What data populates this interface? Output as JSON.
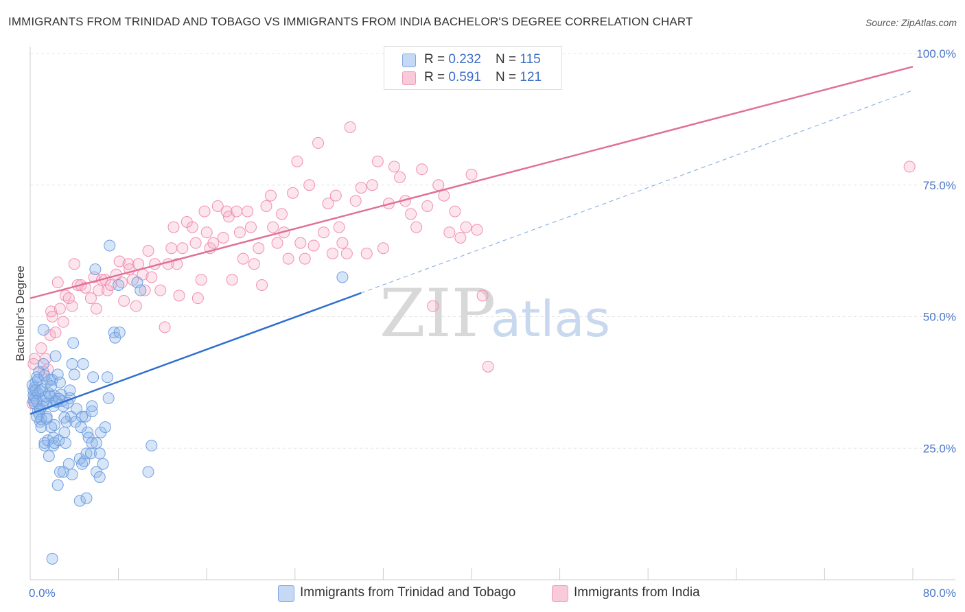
{
  "header": {
    "title": "IMMIGRANTS FROM TRINIDAD AND TOBAGO VS IMMIGRANTS FROM INDIA BACHELOR'S DEGREE CORRELATION CHART",
    "source": "Source: ZipAtlas.com"
  },
  "watermark": {
    "zip": "ZIP",
    "atlas": "atlas"
  },
  "legend": {
    "rows": [
      {
        "r_label": "R = ",
        "r_value": "0.232",
        "n_label": "N = ",
        "n_value": "115",
        "color": "#a9c6ef"
      },
      {
        "r_label": "R = ",
        "r_value": "0.591",
        "n_label": "N = ",
        "n_value": "121",
        "color": "#f4b8cb"
      }
    ]
  },
  "bottom_legend": {
    "items": [
      {
        "label": "Immigrants from Trinidad and Tobago",
        "color": "#a9c6ef"
      },
      {
        "label": "Immigrants from India",
        "color": "#f4b8cb"
      }
    ]
  },
  "chart_data": {
    "type": "scatter",
    "title": "IMMIGRANTS FROM TRINIDAD AND TOBAGO VS IMMIGRANTS FROM INDIA BACHELOR'S DEGREE CORRELATION CHART",
    "xlabel": "",
    "ylabel": "Bachelor's Degree",
    "xlim": [
      0,
      80
    ],
    "ylim": [
      0,
      100
    ],
    "x_tick_labels": [
      "0.0%",
      "80.0%"
    ],
    "y_tick_labels": [
      "25.0%",
      "50.0%",
      "75.0%",
      "100.0%"
    ],
    "y_ticks": [
      25,
      50,
      75,
      100
    ],
    "grid": true,
    "series": [
      {
        "name": "Immigrants from Trinidad and Tobago",
        "color": "#6f9fe0",
        "line_color": "#2f6fcf",
        "r": "0.232",
        "n": "115",
        "trend_solid": [
          [
            0,
            31.5
          ],
          [
            30,
            54.5
          ]
        ],
        "trend_dashed": [
          [
            30,
            54.5
          ],
          [
            80,
            93
          ]
        ],
        "points": [
          [
            0.3,
            35
          ],
          [
            0.3,
            36
          ],
          [
            0.3,
            34
          ],
          [
            0.4,
            36.5
          ],
          [
            0.4,
            34.5
          ],
          [
            0.5,
            37.5
          ],
          [
            0.6,
            38.5
          ],
          [
            0.4,
            33.5
          ],
          [
            0.6,
            34
          ],
          [
            0.7,
            32
          ],
          [
            0.7,
            35.5
          ],
          [
            0.8,
            39.5
          ],
          [
            0.8,
            31.5
          ],
          [
            0.9,
            30
          ],
          [
            1.0,
            30.5
          ],
          [
            1.0,
            29
          ],
          [
            1.1,
            33
          ],
          [
            1.2,
            34
          ],
          [
            1.2,
            41
          ],
          [
            1.2,
            47.5
          ],
          [
            1.3,
            26
          ],
          [
            1.3,
            25.5
          ],
          [
            1.5,
            31
          ],
          [
            1.5,
            37.5
          ],
          [
            1.5,
            33.5
          ],
          [
            1.6,
            26.5
          ],
          [
            1.7,
            23.5
          ],
          [
            1.8,
            35
          ],
          [
            1.8,
            38
          ],
          [
            1.9,
            29
          ],
          [
            2.0,
            38
          ],
          [
            2.1,
            27
          ],
          [
            2.1,
            33
          ],
          [
            2.1,
            25.5
          ],
          [
            2.2,
            35
          ],
          [
            2.2,
            26
          ],
          [
            2.3,
            34
          ],
          [
            2.3,
            42.5
          ],
          [
            2.5,
            18
          ],
          [
            2.5,
            39
          ],
          [
            2.6,
            26.5
          ],
          [
            2.7,
            20.5
          ],
          [
            2.7,
            37.5
          ],
          [
            2.9,
            34
          ],
          [
            3.0,
            33
          ],
          [
            3.0,
            20.5
          ],
          [
            3.1,
            28
          ],
          [
            3.2,
            26
          ],
          [
            3.3,
            30
          ],
          [
            3.5,
            22
          ],
          [
            3.6,
            36
          ],
          [
            3.6,
            34.5
          ],
          [
            3.7,
            31
          ],
          [
            3.8,
            20
          ],
          [
            3.8,
            41
          ],
          [
            3.9,
            45
          ],
          [
            4.0,
            39
          ],
          [
            4.1,
            30
          ],
          [
            4.2,
            32.5
          ],
          [
            4.5,
            15
          ],
          [
            4.5,
            23
          ],
          [
            4.6,
            29
          ],
          [
            4.7,
            31
          ],
          [
            4.7,
            22
          ],
          [
            4.8,
            41
          ],
          [
            4.9,
            22.5
          ],
          [
            5.0,
            31
          ],
          [
            5.1,
            15.5
          ],
          [
            5.1,
            24
          ],
          [
            5.2,
            28
          ],
          [
            5.3,
            27
          ],
          [
            5.5,
            24
          ],
          [
            5.6,
            32
          ],
          [
            5.6,
            26
          ],
          [
            5.6,
            33
          ],
          [
            5.7,
            38.5
          ],
          [
            5.9,
            59
          ],
          [
            6.0,
            26
          ],
          [
            6.0,
            20.5
          ],
          [
            6.3,
            19.5
          ],
          [
            6.3,
            24
          ],
          [
            6.4,
            28
          ],
          [
            6.6,
            22
          ],
          [
            6.8,
            29
          ],
          [
            7.0,
            38.5
          ],
          [
            7.1,
            34.5
          ],
          [
            7.2,
            63.5
          ],
          [
            7.6,
            47
          ],
          [
            7.7,
            46
          ],
          [
            8.0,
            56
          ],
          [
            8.1,
            47
          ],
          [
            9.7,
            56.5
          ],
          [
            10.0,
            55
          ],
          [
            10.7,
            20.5
          ],
          [
            11.0,
            25.5
          ],
          [
            28.3,
            57.5
          ],
          [
            2.0,
            4
          ],
          [
            0.2,
            37
          ],
          [
            0.5,
            36
          ],
          [
            0.9,
            35.8
          ],
          [
            1.1,
            36.2
          ],
          [
            1.4,
            34.8
          ],
          [
            1.7,
            35.4
          ],
          [
            2.4,
            33.8
          ],
          [
            2.8,
            35.2
          ],
          [
            3.4,
            33.6
          ],
          [
            0.7,
            38
          ],
          [
            1.3,
            38.8
          ],
          [
            1.9,
            36.8
          ],
          [
            2.6,
            34.4
          ],
          [
            0.9,
            32.4
          ],
          [
            1.5,
            30.6
          ],
          [
            2.2,
            29.4
          ],
          [
            3.1,
            30.8
          ],
          [
            0.6,
            31
          ]
        ]
      },
      {
        "name": "Immigrants from India",
        "color": "#f08fae",
        "line_color": "#e0709a",
        "r": "0.591",
        "n": "121",
        "trend_solid": [
          [
            0,
            53.5
          ],
          [
            80,
            97.5
          ]
        ],
        "points": [
          [
            0.2,
            33.5
          ],
          [
            0.3,
            41
          ],
          [
            1.2,
            39.5
          ],
          [
            1.4,
            42
          ],
          [
            1.8,
            46.5
          ],
          [
            1.9,
            51
          ],
          [
            2.0,
            50
          ],
          [
            2.3,
            47
          ],
          [
            2.5,
            56.5
          ],
          [
            2.7,
            51.5
          ],
          [
            3.0,
            49
          ],
          [
            3.2,
            54
          ],
          [
            3.5,
            53.5
          ],
          [
            3.8,
            52
          ],
          [
            4.0,
            60
          ],
          [
            4.3,
            56
          ],
          [
            4.6,
            56
          ],
          [
            5.0,
            55.5
          ],
          [
            5.5,
            53.5
          ],
          [
            5.8,
            57.5
          ],
          [
            6.0,
            51.5
          ],
          [
            6.2,
            55
          ],
          [
            6.5,
            57
          ],
          [
            6.8,
            57
          ],
          [
            7.0,
            55
          ],
          [
            7.3,
            56
          ],
          [
            7.8,
            58
          ],
          [
            8.1,
            60.5
          ],
          [
            8.3,
            56.5
          ],
          [
            8.5,
            53
          ],
          [
            8.9,
            60
          ],
          [
            9.0,
            59
          ],
          [
            9.3,
            57
          ],
          [
            9.6,
            52
          ],
          [
            9.8,
            60
          ],
          [
            10.2,
            58
          ],
          [
            10.4,
            55
          ],
          [
            10.7,
            62.5
          ],
          [
            11.0,
            57.5
          ],
          [
            11.3,
            60
          ],
          [
            11.8,
            55
          ],
          [
            12.2,
            48
          ],
          [
            12.5,
            60
          ],
          [
            12.8,
            63
          ],
          [
            13.0,
            67
          ],
          [
            13.3,
            60
          ],
          [
            13.5,
            54
          ],
          [
            13.8,
            63
          ],
          [
            14.2,
            68
          ],
          [
            14.7,
            67
          ],
          [
            15.0,
            64
          ],
          [
            15.2,
            53.5
          ],
          [
            15.5,
            57
          ],
          [
            15.8,
            70
          ],
          [
            16.0,
            66
          ],
          [
            16.3,
            63
          ],
          [
            16.6,
            64
          ],
          [
            17.0,
            71
          ],
          [
            17.5,
            65
          ],
          [
            17.8,
            70
          ],
          [
            18.0,
            69
          ],
          [
            18.3,
            57
          ],
          [
            18.7,
            70
          ],
          [
            19.0,
            66
          ],
          [
            19.3,
            61
          ],
          [
            19.7,
            70
          ],
          [
            20.0,
            67
          ],
          [
            20.3,
            60
          ],
          [
            20.7,
            63
          ],
          [
            21.0,
            56
          ],
          [
            21.4,
            71
          ],
          [
            21.8,
            73
          ],
          [
            22.0,
            67
          ],
          [
            22.4,
            64
          ],
          [
            22.8,
            69.5
          ],
          [
            23.0,
            66
          ],
          [
            23.4,
            61
          ],
          [
            23.8,
            73.5
          ],
          [
            24.2,
            79.5
          ],
          [
            24.5,
            64
          ],
          [
            24.9,
            61
          ],
          [
            25.3,
            75
          ],
          [
            25.7,
            63.5
          ],
          [
            26.1,
            83
          ],
          [
            26.6,
            66
          ],
          [
            27.0,
            71.5
          ],
          [
            27.4,
            62
          ],
          [
            27.7,
            73
          ],
          [
            28.0,
            67
          ],
          [
            28.3,
            64
          ],
          [
            28.7,
            62
          ],
          [
            29.0,
            86
          ],
          [
            29.5,
            72
          ],
          [
            30.0,
            74.5
          ],
          [
            30.5,
            62
          ],
          [
            31.0,
            75
          ],
          [
            31.5,
            79.5
          ],
          [
            32.0,
            63
          ],
          [
            32.5,
            71.5
          ],
          [
            33.0,
            78.5
          ],
          [
            33.5,
            76.5
          ],
          [
            34.0,
            72
          ],
          [
            34.5,
            69.5
          ],
          [
            35.0,
            67
          ],
          [
            35.5,
            78
          ],
          [
            36.0,
            71
          ],
          [
            36.5,
            52
          ],
          [
            37.0,
            75
          ],
          [
            37.5,
            73
          ],
          [
            38.0,
            66
          ],
          [
            38.5,
            70
          ],
          [
            39.0,
            65
          ],
          [
            39.5,
            67
          ],
          [
            40.0,
            77
          ],
          [
            40.5,
            66.5
          ],
          [
            41.0,
            54
          ],
          [
            41.5,
            40.5
          ],
          [
            79.7,
            78.5
          ],
          [
            0.4,
            42
          ],
          [
            1.0,
            44
          ],
          [
            1.6,
            40
          ]
        ]
      }
    ]
  }
}
